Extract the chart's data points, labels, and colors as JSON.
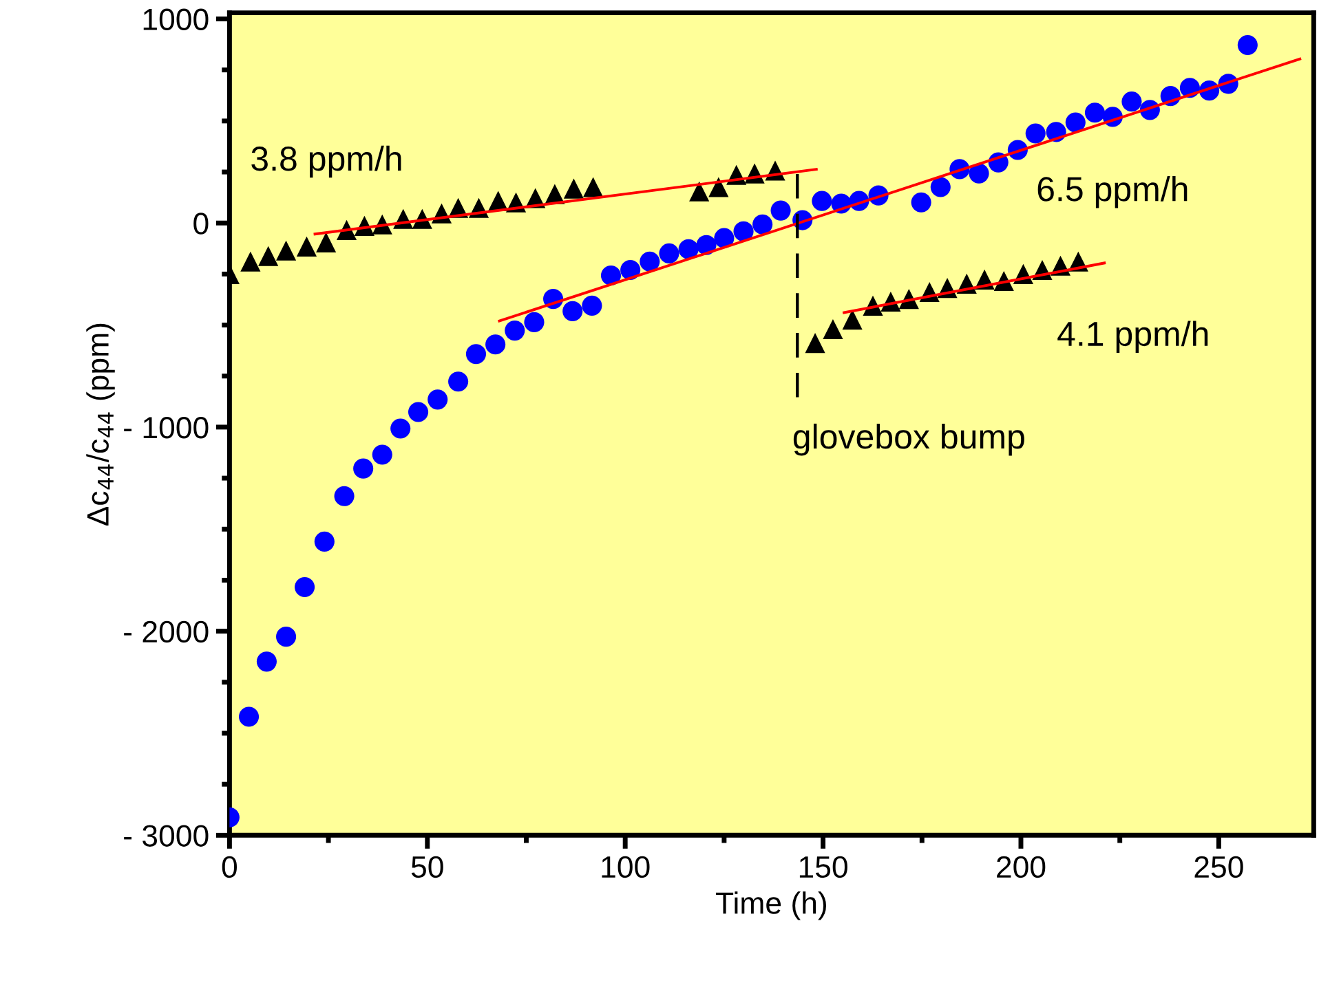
{
  "chart_data": {
    "type": "scatter",
    "xlabel": "Time (h)",
    "ylabel": "Δc$_{44}$/c$_{44}$ (ppm)",
    "xlim": [
      0,
      274
    ],
    "ylim": [
      -3000,
      1030
    ],
    "xticks": [
      0,
      50,
      100,
      150,
      200,
      250
    ],
    "yticks": [
      {
        "value": -3000,
        "label": "- 3000"
      },
      {
        "value": -2000,
        "label": "- 2000"
      },
      {
        "value": -1000,
        "label": "- 1000"
      },
      0,
      1000
    ],
    "grid": false,
    "series": [
      {
        "marker": "circle",
        "color": "#0000ff",
        "x": [
          0,
          4.9,
          9.4,
          14.3,
          19,
          24,
          29,
          33.8,
          38.6,
          43.2,
          47.7,
          52.6,
          57.8,
          62.3,
          67.2,
          72.1,
          77,
          81.8,
          86.7,
          91.6,
          96.4,
          101.3,
          106.2,
          111.1,
          116,
          120.5,
          125,
          129.9,
          134.7,
          139.3,
          144.8,
          149.7,
          154.6,
          159.1,
          164,
          174.8,
          179.7,
          184.5,
          189.4,
          194.3,
          199.2,
          203.7,
          208.9,
          213.8,
          218.7,
          223.2,
          228,
          232.6,
          237.8,
          242.7,
          247.6,
          252.4,
          257.3
        ],
        "values": [
          -2912,
          -2419,
          -2149,
          -2027,
          -1784,
          -1561,
          -1338,
          -1203,
          -1135,
          -1007,
          -926,
          -865,
          -777,
          -642,
          -595,
          -527,
          -486,
          -372,
          -432,
          -405,
          -257,
          -230,
          -189,
          -149,
          -128,
          -108,
          -74,
          -41,
          -7,
          61,
          14,
          108,
          95,
          108,
          135,
          101,
          176,
          264,
          243,
          297,
          358,
          439,
          446,
          493,
          541,
          520,
          595,
          554,
          622,
          662,
          649,
          682,
          872
        ]
      },
      {
        "marker": "triangle",
        "color": "#000000",
        "x": [
          0,
          5.3,
          9.8,
          14.3,
          19.5,
          24.4,
          29.6,
          34.1,
          38.6,
          43.9,
          48.7,
          53.6,
          57.8,
          63,
          67.9,
          72.4,
          77.3,
          82.2,
          87,
          91.9,
          118.7,
          123.6,
          128.1,
          132.7,
          137.9
        ],
        "values": [
          -250,
          -189,
          -162,
          -135,
          -115,
          -95,
          -34,
          -14,
          -7,
          20,
          20,
          47,
          74,
          74,
          108,
          101,
          122,
          142,
          169,
          176,
          155,
          176,
          236,
          243,
          257
        ]
      },
      {
        "marker": "triangle",
        "color": "#000000",
        "x": [
          148,
          152.5,
          157.4,
          162.6,
          167.1,
          171.7,
          176.9,
          181.4,
          186.3,
          190.8,
          195.7,
          200.6,
          205.4,
          210,
          214.5
        ],
        "values": [
          -588,
          -520,
          -473,
          -405,
          -385,
          -372,
          -338,
          -318,
          -297,
          -277,
          -284,
          -250,
          -230,
          -209,
          -189
        ]
      },
      {
        "type": "line",
        "marker": "none",
        "line_style": "solid",
        "color": "#ff0000",
        "x": [
          21.6,
          148.3
        ],
        "values": [
          -54,
          263
        ]
      },
      {
        "type": "line",
        "marker": "none",
        "line_style": "solid",
        "color": "#ff0000",
        "x": [
          68.2,
          270.5
        ],
        "values": [
          -480,
          804
        ]
      },
      {
        "type": "line",
        "marker": "none",
        "line_style": "solid",
        "color": "#ff0000",
        "x": [
          155.3,
          221.1
        ],
        "values": [
          -439,
          -196
        ]
      },
      {
        "type": "line",
        "marker": "none",
        "line_style": "dashed",
        "color": "#000000",
        "x": [
          143.5,
          143.5
        ],
        "values": [
          240,
          -860
        ]
      }
    ],
    "annotations": [
      "3.8 ppm/h",
      "6.5 ppm/h",
      "4.1 ppm/h",
      "glovebox bump"
    ]
  }
}
